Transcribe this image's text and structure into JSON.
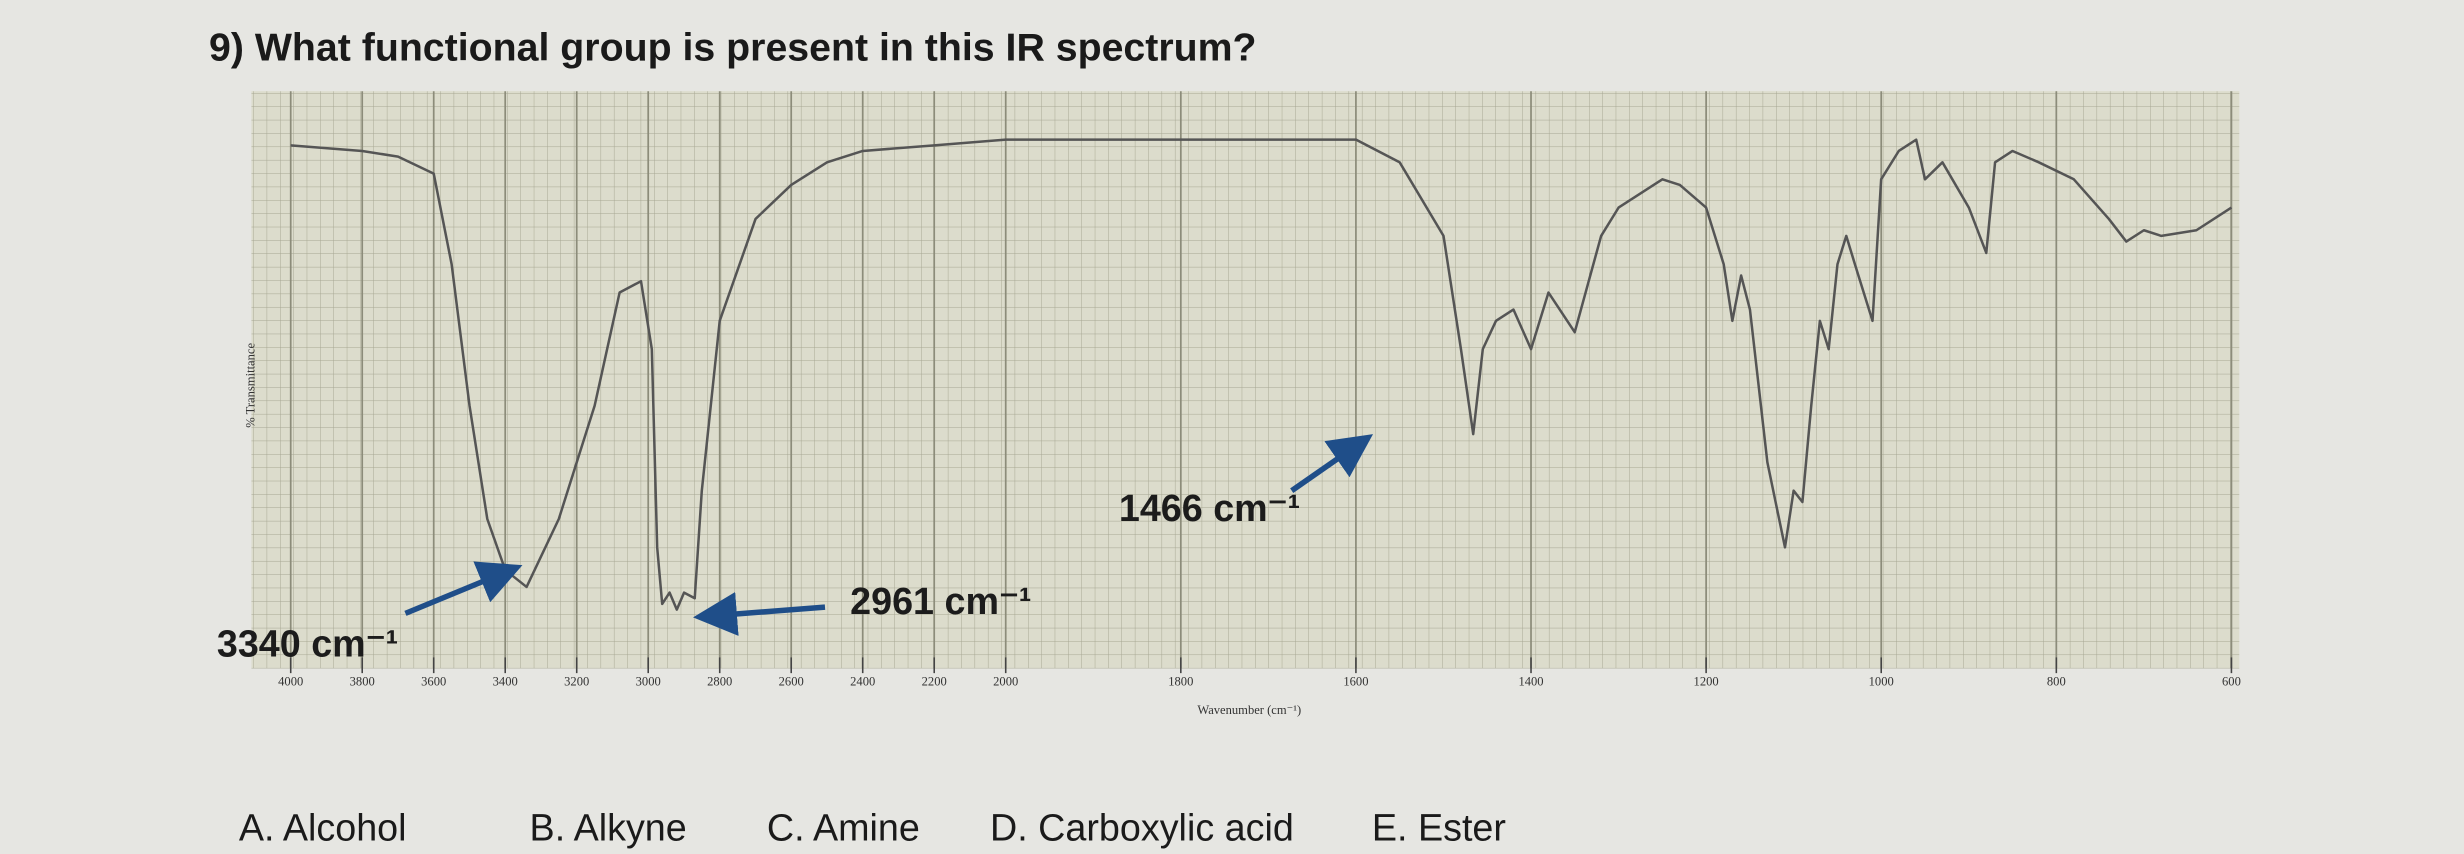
{
  "question": "9) What functional group is present in this IR spectrum?",
  "choices": [
    "A. Alcohol",
    "B. Alkyne",
    "C. Amine",
    "D. Carboxylic acid",
    "E. Ester"
  ],
  "chart_data": {
    "type": "line",
    "x_label": "Wavenumber (cm⁻¹)",
    "y_label": "% Transmittance",
    "xlim": [
      4000,
      600
    ],
    "x_scale_change_at": 2000,
    "ylim": [
      0,
      100
    ],
    "xticks": [
      4000,
      3800,
      3600,
      3400,
      3200,
      3000,
      2800,
      2600,
      2400,
      2200,
      2000,
      1800,
      1600,
      1400,
      1200,
      1000,
      800,
      600
    ],
    "grid": true,
    "color": "#555555",
    "x": [
      4000,
      3800,
      3700,
      3600,
      3550,
      3500,
      3450,
      3400,
      3340,
      3250,
      3150,
      3080,
      3020,
      2990,
      2975,
      2961,
      2940,
      2920,
      2900,
      2870,
      2850,
      2800,
      2700,
      2600,
      2500,
      2400,
      2200,
      2000,
      1800,
      1600,
      1550,
      1500,
      1480,
      1466,
      1455,
      1440,
      1420,
      1400,
      1380,
      1350,
      1320,
      1300,
      1280,
      1250,
      1230,
      1200,
      1180,
      1170,
      1160,
      1150,
      1130,
      1110,
      1100,
      1090,
      1080,
      1070,
      1060,
      1050,
      1040,
      1030,
      1010,
      1000,
      980,
      960,
      950,
      930,
      900,
      880,
      870,
      850,
      820,
      780,
      740,
      720,
      700,
      680,
      640,
      600
    ],
    "values": [
      91,
      90,
      89,
      86,
      70,
      45,
      25,
      16,
      13,
      25,
      45,
      65,
      67,
      55,
      20,
      10,
      12,
      9,
      12,
      11,
      30,
      60,
      78,
      84,
      88,
      90,
      91,
      92,
      92,
      92,
      88,
      75,
      55,
      40,
      55,
      60,
      62,
      55,
      65,
      58,
      75,
      80,
      82,
      85,
      84,
      80,
      70,
      60,
      68,
      62,
      35,
      20,
      30,
      28,
      45,
      60,
      55,
      70,
      75,
      70,
      60,
      85,
      90,
      92,
      85,
      88,
      80,
      72,
      88,
      90,
      88,
      85,
      78,
      74,
      76,
      75,
      76,
      80
    ],
    "annotations": [
      "3340 cm⁻¹",
      "2961 cm⁻¹",
      "1466 cm⁻¹"
    ]
  }
}
